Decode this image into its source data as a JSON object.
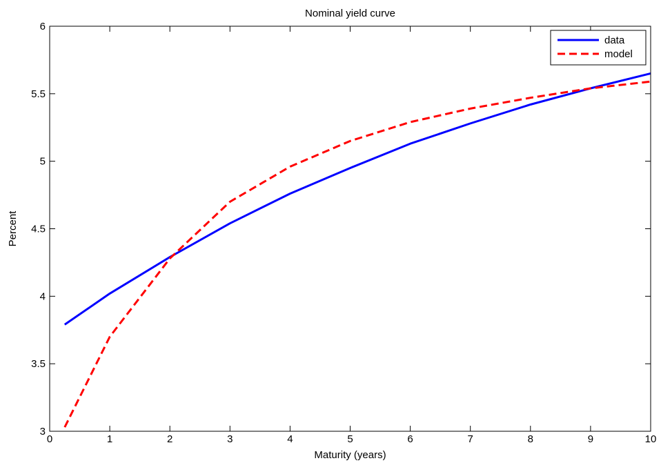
{
  "chart_data": {
    "type": "line",
    "title": "Nominal yield curve",
    "xlabel": "Maturity (years)",
    "ylabel": "Percent",
    "xlim": [
      0,
      10
    ],
    "ylim": [
      3,
      6
    ],
    "xticks": [
      0,
      1,
      2,
      3,
      4,
      5,
      6,
      7,
      8,
      9,
      10
    ],
    "xtick_labels": [
      "0",
      "1",
      "2",
      "3",
      "4",
      "5",
      "6",
      "7",
      "8",
      "9",
      "10"
    ],
    "yticks": [
      3,
      3.5,
      4,
      4.5,
      5,
      5.5,
      6
    ],
    "ytick_labels": [
      "3",
      "3.5",
      "4",
      "4.5",
      "5",
      "5.5",
      "6"
    ],
    "grid": false,
    "legend_position": "top-right",
    "series": [
      {
        "name": "data",
        "color": "#0000ff",
        "style": "solid",
        "x": [
          0.25,
          1,
          2,
          3,
          4,
          5,
          6,
          7,
          8,
          9,
          10
        ],
        "y": [
          3.79,
          4.02,
          4.29,
          4.54,
          4.76,
          4.95,
          5.13,
          5.28,
          5.42,
          5.54,
          5.65
        ]
      },
      {
        "name": "model",
        "color": "#ff0000",
        "style": "dashed",
        "x": [
          0.25,
          1,
          2,
          3,
          4,
          5,
          6,
          7,
          8,
          9,
          10
        ],
        "y": [
          3.03,
          3.7,
          4.28,
          4.7,
          4.96,
          5.15,
          5.29,
          5.39,
          5.47,
          5.54,
          5.59
        ]
      }
    ]
  }
}
